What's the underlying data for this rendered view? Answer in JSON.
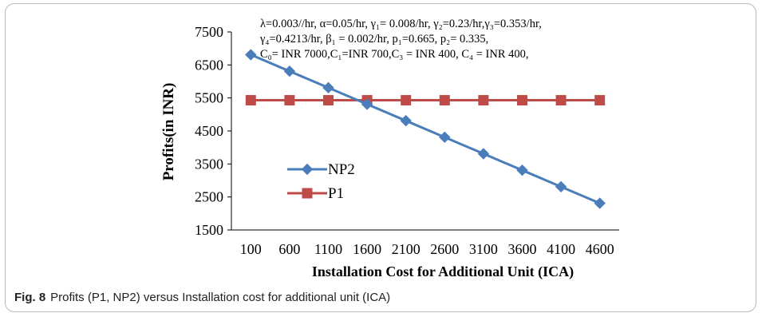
{
  "caption": {
    "label": "Fig. 8",
    "text": "Profits (P1, NP2) versus Installation cost for additional unit (ICA)"
  },
  "chart_data": {
    "type": "line",
    "title": "",
    "xlabel": "Installation Cost for Additional  Unit (ICA)",
    "ylabel": "Profits(in INR)",
    "categories": [
      "100",
      "600",
      "1100",
      "1600",
      "2100",
      "2600",
      "3100",
      "3600",
      "4100",
      "4600"
    ],
    "ylim": [
      1500,
      7500
    ],
    "yticks": [
      "1500",
      "2500",
      "3500",
      "4500",
      "5500",
      "6500",
      "7500"
    ],
    "grid": false,
    "legend_position": "center-left",
    "series": [
      {
        "name": "NP2",
        "color": "#4a7ebb",
        "marker": "diamond",
        "values": [
          6810,
          6310,
          5810,
          5310,
          4810,
          4310,
          3810,
          3310,
          2810,
          2310
        ]
      },
      {
        "name": "P1",
        "color": "#be4b48",
        "marker": "square",
        "values": [
          5430,
          5430,
          5430,
          5430,
          5430,
          5430,
          5430,
          5430,
          5430,
          5430
        ]
      }
    ],
    "annotation_lines": [
      "λ=0.003//hr, α=0.05/hr, γ₁= 0.008/hr, γ₂=0.23/hr,γ₃=0.353/hr,",
      "γ₄=0.4213/hr, β₁ = 0.002/hr, p₁=0.665, p₂= 0.335,",
      "C₀= INR 7000,C₁=INR 700,C₃ = INR 400, C₄ = INR 400,"
    ]
  }
}
